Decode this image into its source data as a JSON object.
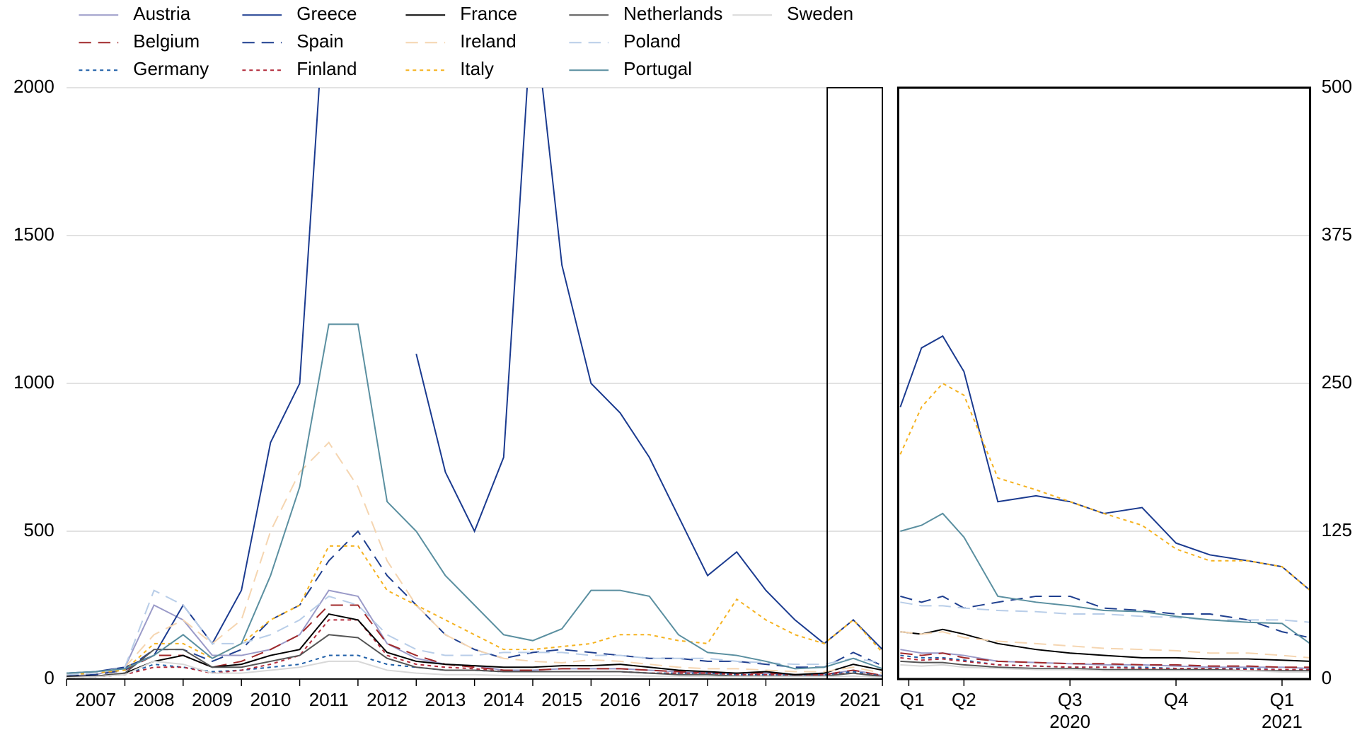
{
  "chart_data": [
    {
      "type": "line",
      "x": [
        2007.0,
        2007.5,
        2008.0,
        2008.5,
        2009.0,
        2009.5,
        2010.0,
        2010.5,
        2011.0,
        2011.5,
        2012.0,
        2012.5,
        2013.0,
        2013.5,
        2014.0,
        2014.5,
        2015.0,
        2015.5,
        2016.0,
        2016.5,
        2017.0,
        2017.5,
        2018.0,
        2018.5,
        2019.0,
        2019.5,
        2020.0,
        2020.5,
        2021.0
      ],
      "xlim": [
        2007,
        2021
      ],
      "xticks": [
        2007,
        2008,
        2009,
        2010,
        2011,
        2012,
        2013,
        2014,
        2015,
        2016,
        2017,
        2018,
        2019,
        2021
      ],
      "ylim": [
        0,
        2000
      ],
      "yticks": [
        0,
        500,
        1000,
        1500,
        2000
      ],
      "grid": true,
      "series": [
        {
          "name": "Austria",
          "color": "#9a9ac8",
          "dash": "solid",
          "values": [
            10,
            15,
            40,
            250,
            200,
            80,
            80,
            100,
            150,
            300,
            280,
            120,
            70,
            50,
            45,
            30,
            30,
            35,
            35,
            35,
            30,
            25,
            20,
            20,
            20,
            15,
            15,
            30,
            12
          ]
        },
        {
          "name": "Belgium",
          "color": "#a0282a",
          "dash": "dashed",
          "values": [
            10,
            15,
            30,
            80,
            80,
            40,
            60,
            100,
            150,
            250,
            250,
            120,
            80,
            50,
            40,
            30,
            30,
            35,
            35,
            35,
            30,
            25,
            20,
            20,
            20,
            15,
            15,
            30,
            12
          ]
        },
        {
          "name": "Germany",
          "color": "#1f5fa8",
          "dash": "dotted",
          "values": [
            5,
            8,
            15,
            50,
            40,
            25,
            30,
            40,
            50,
            80,
            80,
            50,
            40,
            30,
            30,
            25,
            25,
            25,
            25,
            25,
            20,
            20,
            20,
            15,
            15,
            15,
            15,
            25,
            10
          ]
        },
        {
          "name": "Greece",
          "color": "#1a3a8f",
          "dash": "solid",
          "values": [
            20,
            25,
            40,
            80,
            250,
            120,
            300,
            800,
            1000,
            2500,
            null,
            null,
            1100,
            700,
            500,
            750,
            2300,
            1400,
            1000,
            900,
            750,
            550,
            350,
            430,
            300,
            200,
            120,
            200,
            100
          ]
        },
        {
          "name": "Spain",
          "color": "#1f3f8f",
          "dash": "dashed",
          "values": [
            10,
            15,
            30,
            100,
            100,
            60,
            100,
            200,
            250,
            400,
            500,
            350,
            250,
            150,
            100,
            70,
            90,
            100,
            90,
            80,
            70,
            70,
            60,
            60,
            50,
            40,
            40,
            90,
            45
          ]
        },
        {
          "name": "Finland",
          "color": "#b22a3a",
          "dash": "dotted",
          "values": [
            5,
            8,
            15,
            40,
            40,
            20,
            30,
            50,
            80,
            200,
            200,
            80,
            50,
            40,
            35,
            25,
            25,
            25,
            25,
            25,
            20,
            20,
            20,
            15,
            15,
            15,
            15,
            20,
            10
          ]
        },
        {
          "name": "France",
          "color": "#000000",
          "dash": "solid",
          "values": [
            8,
            10,
            20,
            60,
            80,
            40,
            50,
            80,
            100,
            220,
            200,
            90,
            60,
            50,
            45,
            40,
            40,
            45,
            45,
            50,
            40,
            30,
            25,
            20,
            25,
            15,
            20,
            50,
            30
          ]
        },
        {
          "name": "Ireland",
          "color": "#f5d5b0",
          "dash": "dashed",
          "values": [
            15,
            20,
            40,
            150,
            200,
            120,
            200,
            500,
            700,
            800,
            650,
            400,
            250,
            150,
            100,
            70,
            60,
            55,
            65,
            60,
            50,
            40,
            35,
            35,
            30,
            25,
            25,
            40,
            20
          ]
        },
        {
          "name": "Italy",
          "color": "#f5b21f",
          "dash": "dotted",
          "values": [
            15,
            20,
            30,
            120,
            120,
            70,
            120,
            200,
            250,
            450,
            450,
            300,
            250,
            200,
            150,
            100,
            100,
            110,
            120,
            150,
            150,
            130,
            120,
            270,
            200,
            150,
            120,
            200,
            90
          ]
        },
        {
          "name": "Netherlands",
          "color": "#555555",
          "dash": "solid",
          "values": [
            5,
            8,
            20,
            100,
            100,
            40,
            40,
            60,
            80,
            150,
            140,
            70,
            40,
            30,
            30,
            25,
            25,
            25,
            25,
            25,
            20,
            15,
            15,
            10,
            10,
            10,
            10,
            20,
            8
          ]
        },
        {
          "name": "Poland",
          "color": "#b8cde8",
          "dash": "dashed",
          "values": [
            15,
            20,
            40,
            300,
            250,
            120,
            120,
            150,
            200,
            280,
            250,
            150,
            100,
            80,
            80,
            90,
            90,
            90,
            80,
            80,
            70,
            70,
            70,
            60,
            55,
            50,
            50,
            70,
            55
          ]
        },
        {
          "name": "Portugal",
          "color": "#5a8fa0",
          "dash": "solid",
          "values": [
            20,
            25,
            35,
            80,
            150,
            70,
            120,
            350,
            650,
            1200,
            1200,
            600,
            500,
            350,
            250,
            150,
            130,
            170,
            300,
            300,
            280,
            150,
            90,
            80,
            60,
            35,
            40,
            70,
            35
          ]
        },
        {
          "name": "Sweden",
          "color": "#d8d8d8",
          "dash": "solid",
          "values": [
            5,
            8,
            15,
            60,
            50,
            20,
            20,
            30,
            40,
            60,
            60,
            30,
            20,
            15,
            15,
            12,
            12,
            12,
            12,
            12,
            10,
            10,
            8,
            8,
            8,
            8,
            8,
            10,
            6
          ]
        }
      ]
    },
    {
      "type": "line",
      "x": [
        2020.1,
        2020.15,
        2020.2,
        2020.25,
        2020.33,
        2020.42,
        2020.5,
        2020.58,
        2020.67,
        2020.75,
        2020.83,
        2020.92,
        2021.0,
        2021.066
      ],
      "xlim": [
        2020.095,
        2021.066
      ],
      "xticks": [
        {
          "value": 2020.12,
          "label": "Q1"
        },
        {
          "value": 2020.25,
          "label": "Q2"
        },
        {
          "value": 2020.5,
          "label": "Q3"
        },
        {
          "value": 2020.75,
          "label": "Q4"
        },
        {
          "value": 2021.0,
          "label": "Q1"
        }
      ],
      "year_labels": [
        {
          "value": 2020.5,
          "label": "2020"
        },
        {
          "value": 2021.0,
          "label": "2021"
        }
      ],
      "ylim": [
        0,
        500
      ],
      "yticks": [
        0,
        125,
        250,
        375,
        500
      ],
      "grid": true,
      "series": [
        {
          "name": "Austria",
          "color": "#9a9ac8",
          "dash": "solid",
          "values": [
            25,
            22,
            22,
            20,
            15,
            14,
            13,
            12,
            12,
            11,
            10,
            10,
            10,
            9
          ]
        },
        {
          "name": "Belgium",
          "color": "#a0282a",
          "dash": "dashed",
          "values": [
            22,
            20,
            22,
            18,
            15,
            14,
            13,
            13,
            12,
            12,
            11,
            11,
            10,
            10
          ]
        },
        {
          "name": "Germany",
          "color": "#1f5fa8",
          "dash": "dotted",
          "values": [
            20,
            18,
            18,
            16,
            12,
            11,
            10,
            10,
            10,
            9,
            9,
            9,
            8,
            8
          ]
        },
        {
          "name": "Greece",
          "color": "#1a3a8f",
          "dash": "solid",
          "values": [
            230,
            280,
            290,
            260,
            150,
            155,
            150,
            140,
            145,
            115,
            105,
            100,
            95,
            75
          ]
        },
        {
          "name": "Spain",
          "color": "#1f3f8f",
          "dash": "dashed",
          "values": [
            70,
            65,
            70,
            60,
            65,
            70,
            70,
            60,
            58,
            55,
            55,
            50,
            40,
            35
          ]
        },
        {
          "name": "Finland",
          "color": "#b22a3a",
          "dash": "dotted",
          "values": [
            18,
            16,
            17,
            15,
            12,
            11,
            10,
            10,
            9,
            9,
            9,
            8,
            8,
            8
          ]
        },
        {
          "name": "France",
          "color": "#000000",
          "dash": "solid",
          "values": [
            40,
            38,
            42,
            38,
            30,
            25,
            22,
            20,
            18,
            18,
            17,
            17,
            16,
            15
          ]
        },
        {
          "name": "Ireland",
          "color": "#f5d5b0",
          "dash": "dashed",
          "values": [
            40,
            38,
            40,
            35,
            32,
            30,
            28,
            26,
            25,
            24,
            22,
            22,
            20,
            18
          ]
        },
        {
          "name": "Italy",
          "color": "#f5b21f",
          "dash": "dotted",
          "values": [
            190,
            230,
            250,
            240,
            170,
            160,
            150,
            140,
            130,
            110,
            100,
            100,
            95,
            75
          ]
        },
        {
          "name": "Netherlands",
          "color": "#555555",
          "dash": "solid",
          "values": [
            15,
            14,
            14,
            12,
            10,
            9,
            9,
            8,
            8,
            8,
            8,
            7,
            7,
            7
          ]
        },
        {
          "name": "Poland",
          "color": "#b8cde8",
          "dash": "dashed",
          "values": [
            65,
            62,
            62,
            60,
            58,
            57,
            55,
            55,
            53,
            52,
            50,
            50,
            50,
            48
          ]
        },
        {
          "name": "Portugal",
          "color": "#5a8fa0",
          "dash": "solid",
          "values": [
            125,
            130,
            140,
            120,
            70,
            65,
            62,
            58,
            57,
            53,
            50,
            48,
            47,
            30
          ]
        },
        {
          "name": "Sweden",
          "color": "#d8d8d8",
          "dash": "solid",
          "values": [
            12,
            11,
            12,
            10,
            9,
            8,
            8,
            7,
            7,
            7,
            7,
            7,
            6,
            6
          ]
        }
      ]
    }
  ]
}
